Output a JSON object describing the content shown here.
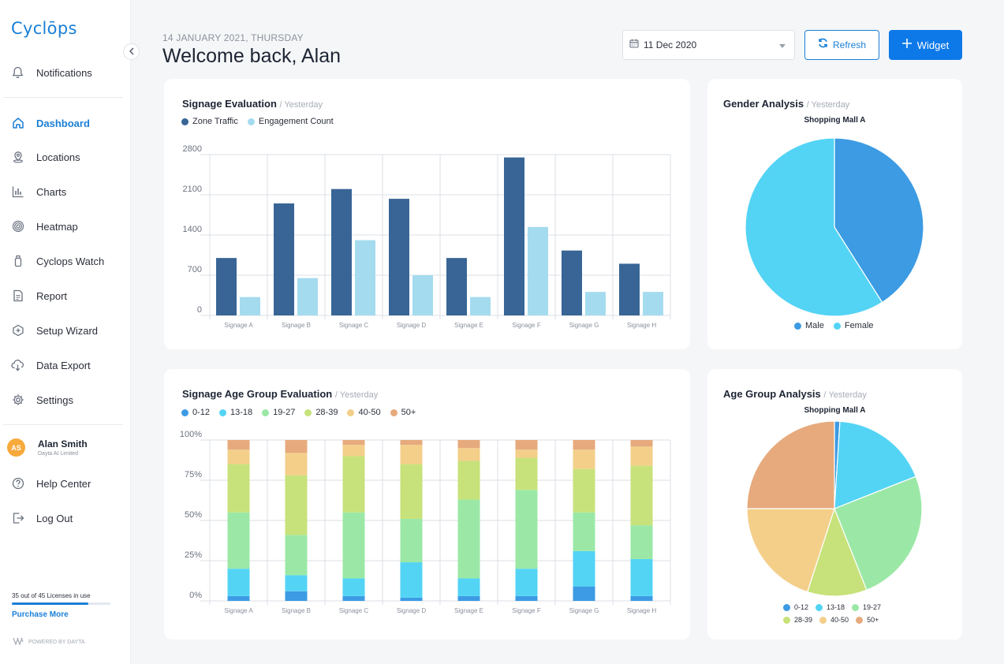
{
  "app": {
    "logo": "Cyclōps"
  },
  "sidebar": {
    "items": [
      {
        "label": "Notifications",
        "icon": "bell-icon"
      },
      {
        "label": "Dashboard",
        "icon": "home-icon",
        "active": true
      },
      {
        "label": "Locations",
        "icon": "location-pin-icon"
      },
      {
        "label": "Charts",
        "icon": "bar-chart-icon"
      },
      {
        "label": "Heatmap",
        "icon": "heatmap-icon"
      },
      {
        "label": "Cyclops Watch",
        "icon": "watch-icon"
      },
      {
        "label": "Report",
        "icon": "report-icon"
      },
      {
        "label": "Setup Wizard",
        "icon": "wizard-icon"
      },
      {
        "label": "Data Export",
        "icon": "cloud-download-icon"
      },
      {
        "label": "Settings",
        "icon": "gear-icon"
      }
    ],
    "user": {
      "initials": "AS",
      "name": "Alan Smith",
      "org": "Dayta AI Limited"
    },
    "footer_items": [
      {
        "label": "Help Center",
        "icon": "help-icon"
      },
      {
        "label": "Log Out",
        "icon": "logout-icon"
      }
    ],
    "licenses": {
      "text": "35 out of 45 Licenses in use",
      "used": 35,
      "total": 45
    },
    "purchase_label": "Purchase More",
    "powered_by": "POWERED BY DAYTA"
  },
  "header": {
    "date_line": "14 JANUARY 2021, THURSDAY",
    "welcome": "Welcome back, Alan",
    "date_picker_value": "11 Dec 2020",
    "refresh_label": "Refresh",
    "widget_label": "Widget"
  },
  "colors": {
    "accent": "#0d79e8",
    "zone_traffic": "#386595",
    "engagement": "#a5dbef",
    "male": "#3c9be3",
    "female": "#53d4f4",
    "age_0_12": "#3c9be3",
    "age_13_18": "#53d4f4",
    "age_19_27": "#9be8a6",
    "age_28_39": "#c7e27a",
    "age_40_50": "#f3cf8a",
    "age_50_plus": "#e6aa7d"
  },
  "cards": {
    "signage": {
      "title": "Signage Evaluation",
      "sub": "/ Yesterday"
    },
    "gender": {
      "title": "Gender Analysis",
      "sub": "/ Yesterday",
      "caption": "Shopping Mall A"
    },
    "age_eval": {
      "title": "Signage Age Group Evaluation",
      "sub": "/ Yesterday"
    },
    "age_analysis": {
      "title": "Age Group Analysis",
      "sub": "/ Yesterday",
      "caption": "Shopping Mall A"
    }
  },
  "chart_data": [
    {
      "id": "signage-evaluation",
      "type": "bar",
      "title": "Signage Evaluation",
      "categories": [
        "Signage A",
        "Signage B",
        "Signage C",
        "Signage D",
        "Signage E",
        "Signage F",
        "Signage G",
        "Signage H"
      ],
      "series": [
        {
          "name": "Zone Traffic",
          "values": [
            1000,
            1950,
            2200,
            2030,
            1000,
            2750,
            1130,
            900
          ]
        },
        {
          "name": "Engagement Count",
          "values": [
            320,
            650,
            1310,
            700,
            320,
            1540,
            410,
            410
          ]
        }
      ],
      "yticks": [
        "0",
        "700",
        "1400",
        "2100",
        "2800"
      ],
      "ylim": [
        0,
        2800
      ],
      "grid": true,
      "legend": "top-left"
    },
    {
      "id": "gender-analysis",
      "type": "pie",
      "title": "Shopping Mall A",
      "labels": [
        "Male",
        "Female"
      ],
      "values": [
        41,
        59
      ],
      "legend": "bottom"
    },
    {
      "id": "signage-age-group-evaluation",
      "type": "bar",
      "stacked": true,
      "title": "Signage Age Group Evaluation",
      "categories": [
        "Signage A",
        "Signage B",
        "Signage C",
        "Signage D",
        "Signage E",
        "Signage F",
        "Signage G",
        "Signage H"
      ],
      "series": [
        {
          "name": "0-12",
          "values": [
            3,
            6,
            3,
            2,
            3,
            3,
            9,
            3
          ]
        },
        {
          "name": "13-18",
          "values": [
            17,
            10,
            11,
            22,
            11,
            17,
            22,
            23
          ]
        },
        {
          "name": "19-27",
          "values": [
            35,
            25,
            41,
            27,
            49,
            49,
            24,
            21
          ]
        },
        {
          "name": "28-39",
          "values": [
            30,
            37,
            35,
            34,
            24,
            20,
            27,
            37
          ]
        },
        {
          "name": "40-50",
          "values": [
            9,
            14,
            7,
            12,
            8,
            5,
            12,
            12
          ]
        },
        {
          "name": "50+",
          "values": [
            6,
            8,
            3,
            3,
            5,
            6,
            6,
            4
          ]
        }
      ],
      "yticks": [
        "0%",
        "25%",
        "50%",
        "75%",
        "100%"
      ],
      "ylim": [
        0,
        100
      ],
      "grid": true,
      "legend": "top-left"
    },
    {
      "id": "age-group-analysis",
      "type": "pie",
      "title": "Shopping Mall A",
      "labels": [
        "0-12",
        "13-18",
        "19-27",
        "28-39",
        "40-50",
        "50+"
      ],
      "values": [
        1,
        18,
        25,
        11,
        20,
        25
      ],
      "legend": "bottom"
    }
  ]
}
